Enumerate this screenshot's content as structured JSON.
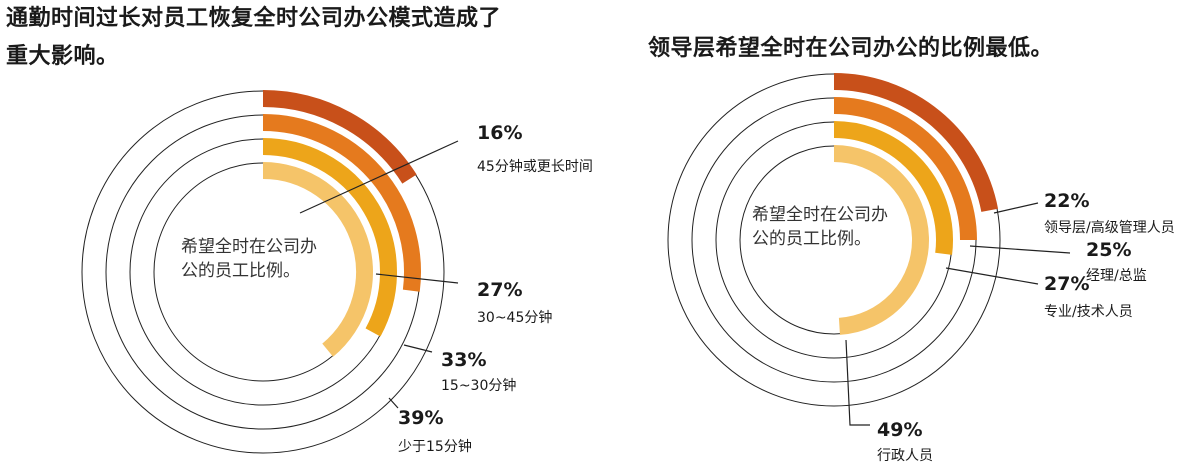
{
  "colors": {
    "ring_dark": "#c8501a",
    "ring_mid": "#e57a1e",
    "ring_amber": "#eda51a",
    "ring_light": "#f5c469",
    "guide_line": "#222222",
    "leader_line": "#222222"
  },
  "chart_data": [
    {
      "type": "radial-bar",
      "title": "通勤时间过长对员工恢复全时公司办公模式造成了重大影响。",
      "center_label": [
        "希望全时在公司办",
        "公的员工比例。"
      ],
      "unit": "%",
      "series": [
        {
          "label": "45分钟或更长时间",
          "value": 16,
          "display": "16%"
        },
        {
          "label": "30~45分钟",
          "value": 27,
          "display": "27%"
        },
        {
          "label": "15~30分钟",
          "value": 33,
          "display": "33%"
        },
        {
          "label": "少于15分钟",
          "value": 39,
          "display": "39%"
        }
      ]
    },
    {
      "type": "radial-bar",
      "title": "领导层希望全时在公司办公的比例最低。",
      "center_label": [
        "希望全时在公司办",
        "公的员工比例。"
      ],
      "unit": "%",
      "series": [
        {
          "label": "领导层/高级管理人员",
          "value": 22,
          "display": "22%"
        },
        {
          "label": "经理/总监",
          "value": 25,
          "display": "25%"
        },
        {
          "label": "专业/技术人员",
          "value": 27,
          "display": "27%"
        },
        {
          "label": "行政人员",
          "value": 49,
          "display": "49%"
        }
      ]
    }
  ]
}
